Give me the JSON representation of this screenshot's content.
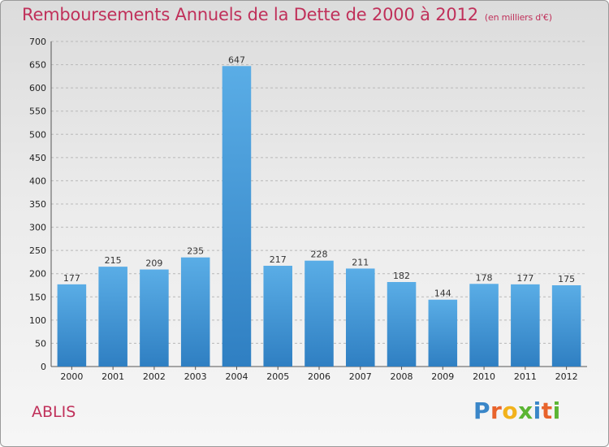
{
  "header": {
    "title": "Remboursements Annuels de la Dette de 2000 à 2012",
    "unit": "(en milliers d'€)"
  },
  "footer": {
    "commune": "ABLIS",
    "logo_letters": [
      "P",
      "r",
      "o",
      "x",
      "i",
      "t",
      "i"
    ],
    "logo_colors": [
      "#3a86c8",
      "#e8632b",
      "#f2b21b",
      "#5bb533",
      "#3a86c8",
      "#e8632b",
      "#5bb533"
    ]
  },
  "colors": {
    "title": "#c0305a",
    "bar_top": "#5aade6",
    "bar_bottom": "#2f7fc2",
    "grid": "#b8b8b8"
  },
  "chart_data": {
    "type": "bar",
    "title": "Remboursements Annuels de la Dette de 2000 à 2012",
    "xlabel": "",
    "ylabel": "",
    "categories": [
      "2000",
      "2001",
      "2002",
      "2003",
      "2004",
      "2005",
      "2006",
      "2007",
      "2008",
      "2009",
      "2010",
      "2011",
      "2012"
    ],
    "values": [
      177,
      215,
      209,
      235,
      647,
      217,
      228,
      211,
      182,
      144,
      178,
      177,
      175
    ],
    "ylim": [
      0,
      700
    ],
    "yticks": [
      0,
      50,
      100,
      150,
      200,
      250,
      300,
      350,
      400,
      450,
      500,
      550,
      600,
      650,
      700
    ],
    "grid": true,
    "legend": "none"
  }
}
